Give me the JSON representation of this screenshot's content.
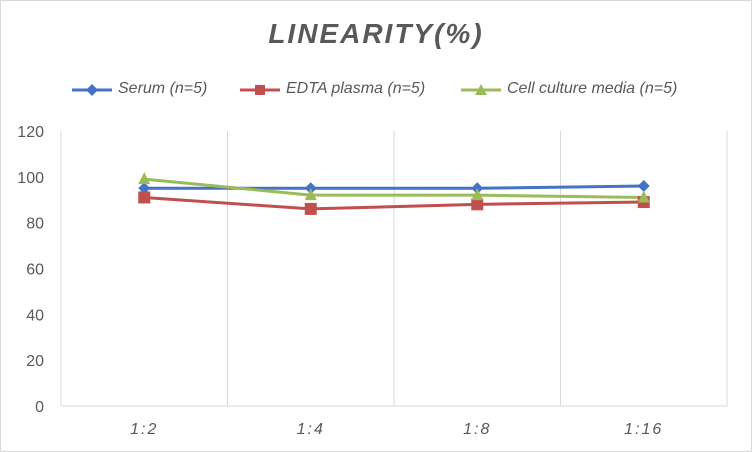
{
  "chart_data": {
    "type": "line",
    "title": "LINEARITY(%)",
    "categories": [
      "1:2",
      "1:4",
      "1:8",
      "1:16"
    ],
    "ylim": [
      0,
      120
    ],
    "yticks": [
      0,
      20,
      40,
      60,
      80,
      100,
      120
    ],
    "grid": "vertical",
    "legend_position": "top",
    "series": [
      {
        "name": "Serum (n=5)",
        "values": [
          95,
          95,
          95,
          96
        ],
        "color": "#4472c4",
        "marker": "diamond"
      },
      {
        "name": "EDTA plasma (n=5)",
        "values": [
          91,
          86,
          88,
          89
        ],
        "color": "#c0504d",
        "marker": "square"
      },
      {
        "name": "Cell culture media (n=5)",
        "values": [
          99,
          92,
          92,
          91
        ],
        "color": "#9bbb59",
        "marker": "triangle"
      }
    ]
  }
}
